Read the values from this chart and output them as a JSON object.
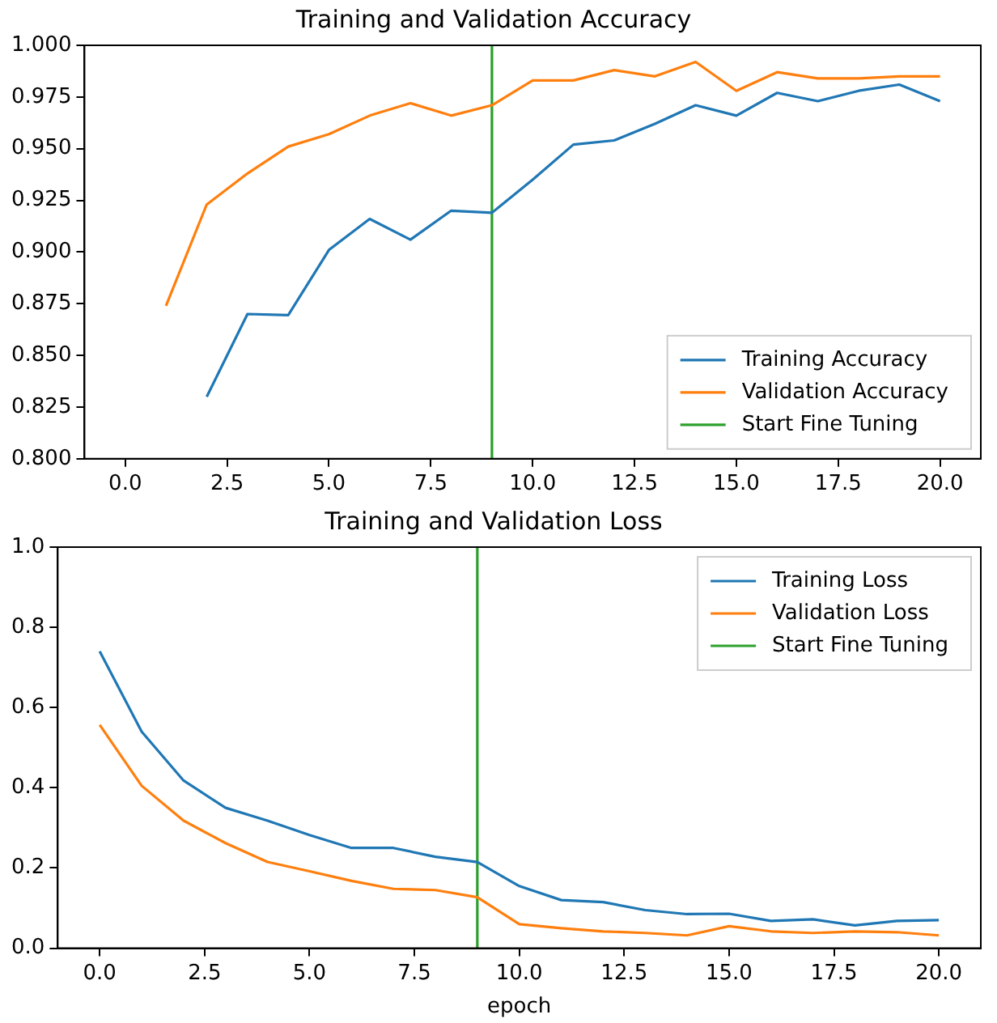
{
  "chart_data": [
    {
      "type": "line",
      "title": "Training and Validation Accuracy",
      "series": [
        {
          "name": "Training Accuracy",
          "color": "#1f77b4",
          "x": [
            2,
            3,
            4,
            5,
            6,
            7,
            8,
            9,
            10,
            11,
            12,
            13,
            14,
            15,
            16,
            17,
            18,
            19,
            20
          ],
          "values": [
            0.83,
            0.87,
            0.8695,
            0.901,
            0.916,
            0.906,
            0.92,
            0.919,
            0.935,
            0.952,
            0.954,
            0.962,
            0.971,
            0.966,
            0.977,
            0.973,
            0.978,
            0.981,
            0.973
          ]
        },
        {
          "name": "Validation Accuracy",
          "color": "#ff7f0e",
          "x": [
            1,
            2,
            3,
            4,
            5,
            6,
            7,
            8,
            9,
            10,
            11,
            12,
            13,
            14,
            15,
            16,
            17,
            18,
            19,
            20
          ],
          "values": [
            0.874,
            0.923,
            0.938,
            0.951,
            0.957,
            0.966,
            0.972,
            0.966,
            0.971,
            0.983,
            0.983,
            0.988,
            0.985,
            0.992,
            0.978,
            0.987,
            0.984,
            0.984,
            0.985,
            0.985
          ]
        },
        {
          "name": "Start Fine Tuning",
          "color": "#2ca02c",
          "x": [
            9,
            9
          ],
          "values": [
            0.8,
            1.0
          ]
        }
      ],
      "xlim": [
        -1,
        21
      ],
      "xticks": [
        {
          "value": 0,
          "label": "0.0"
        },
        {
          "value": 2.5,
          "label": "2.5"
        },
        {
          "value": 5,
          "label": "5.0"
        },
        {
          "value": 7.5,
          "label": "7.5"
        },
        {
          "value": 10,
          "label": "10.0"
        },
        {
          "value": 12.5,
          "label": "12.5"
        },
        {
          "value": 15,
          "label": "15.0"
        },
        {
          "value": 17.5,
          "label": "17.5"
        },
        {
          "value": 20,
          "label": "20.0"
        }
      ],
      "ylim": [
        0.8,
        1.0
      ],
      "yticks": [
        {
          "value": 0.8,
          "label": "0.800"
        },
        {
          "value": 0.825,
          "label": "0.825"
        },
        {
          "value": 0.85,
          "label": "0.850"
        },
        {
          "value": 0.875,
          "label": "0.875"
        },
        {
          "value": 0.9,
          "label": "0.900"
        },
        {
          "value": 0.925,
          "label": "0.925"
        },
        {
          "value": 0.95,
          "label": "0.950"
        },
        {
          "value": 0.975,
          "label": "0.975"
        },
        {
          "value": 1.0,
          "label": "1.000"
        }
      ],
      "legend": "bottom right",
      "grid": false
    },
    {
      "type": "line",
      "title": "Training and Validation Loss",
      "xlabel": "epoch",
      "x": [
        0,
        1,
        2,
        3,
        4,
        5,
        6,
        7,
        8,
        9,
        10,
        11,
        12,
        13,
        14,
        15,
        16,
        17,
        18,
        19,
        20
      ],
      "series": [
        {
          "name": "Training Loss",
          "color": "#1f77b4",
          "values": [
            0.74,
            0.54,
            0.418,
            0.35,
            0.318,
            0.282,
            0.25,
            0.25,
            0.228,
            0.215,
            0.155,
            0.12,
            0.115,
            0.095,
            0.085,
            0.086,
            0.068,
            0.072,
            0.057,
            0.068,
            0.07
          ]
        },
        {
          "name": "Validation Loss",
          "color": "#ff7f0e",
          "values": [
            0.557,
            0.405,
            0.318,
            0.262,
            0.215,
            0.192,
            0.168,
            0.148,
            0.145,
            0.127,
            0.06,
            0.05,
            0.042,
            0.038,
            0.032,
            0.055,
            0.042,
            0.038,
            0.042,
            0.04,
            0.032
          ]
        },
        {
          "name": "Start Fine Tuning",
          "color": "#2ca02c",
          "x": [
            9,
            9
          ],
          "values": [
            0,
            1
          ]
        }
      ],
      "xlim": [
        -1,
        21
      ],
      "xticks": [
        {
          "value": 0,
          "label": "0.0"
        },
        {
          "value": 2.5,
          "label": "2.5"
        },
        {
          "value": 5,
          "label": "5.0"
        },
        {
          "value": 7.5,
          "label": "7.5"
        },
        {
          "value": 10,
          "label": "10.0"
        },
        {
          "value": 12.5,
          "label": "12.5"
        },
        {
          "value": 15,
          "label": "15.0"
        },
        {
          "value": 17.5,
          "label": "17.5"
        },
        {
          "value": 20,
          "label": "20.0"
        }
      ],
      "ylim": [
        0,
        1
      ],
      "yticks": [
        {
          "value": 0,
          "label": "0.0"
        },
        {
          "value": 0.2,
          "label": "0.2"
        },
        {
          "value": 0.4,
          "label": "0.4"
        },
        {
          "value": 0.6,
          "label": "0.6"
        },
        {
          "value": 0.8,
          "label": "0.8"
        },
        {
          "value": 1.0,
          "label": "1.0"
        }
      ],
      "legend": "top right",
      "grid": false
    }
  ]
}
